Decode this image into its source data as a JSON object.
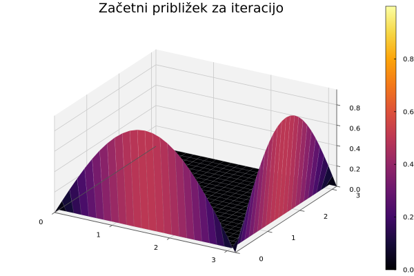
{
  "chart_data": {
    "type": "surface",
    "title": "Začetni približek za iteracijo",
    "xlabel": "",
    "ylabel": "",
    "zlabel": "",
    "function": "sin(x) on edge y=0 and sin(y) on edge x=π, 0 elsewhere",
    "x_range": [
      0,
      3.14159
    ],
    "y_range": [
      0,
      3.14159
    ],
    "z_range": [
      0,
      1
    ],
    "x_ticks": [
      "0",
      "1",
      "2",
      "3"
    ],
    "y_ticks": [
      "0",
      "1",
      "2",
      "3"
    ],
    "z_ticks": [
      "0.0",
      "0.2",
      "0.4",
      "0.6",
      "0.8"
    ],
    "colorbar": {
      "colormap": "inferno",
      "range": [
        0,
        1
      ],
      "ticks": [
        "0.0",
        "0.2",
        "0.4",
        "0.6",
        "0.8"
      ]
    },
    "grid": true,
    "legend": "none"
  }
}
